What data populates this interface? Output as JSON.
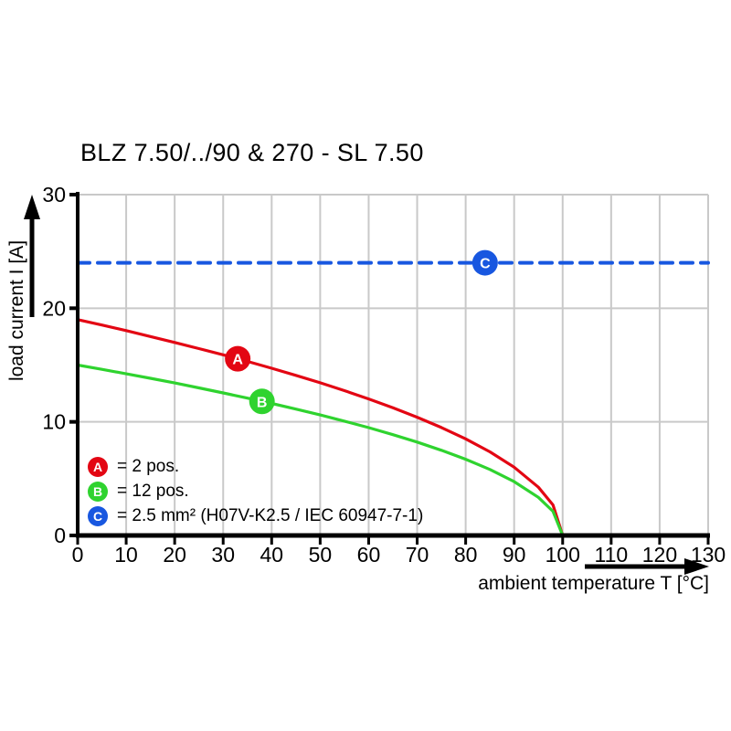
{
  "title": "BLZ 7.50/../90 & 270 - SL 7.50",
  "chart_data": {
    "type": "line",
    "title": "BLZ 7.50/../90 & 270 - SL 7.50",
    "xlabel": "ambient temperature T [°C]",
    "ylabel": "load current I [A]",
    "xlim": [
      0,
      130
    ],
    "ylim": [
      0,
      30
    ],
    "xticks": [
      0,
      10,
      20,
      30,
      40,
      50,
      60,
      70,
      80,
      90,
      100,
      110,
      120,
      130
    ],
    "yticks": [
      0,
      10,
      20,
      30
    ],
    "grid": true,
    "grid_color": "#c9c9c9",
    "axis_color": "#000000",
    "legend_position": "lower-left-inside",
    "series": [
      {
        "name": "A",
        "legend_label": "= 2 pos.",
        "color": "#e30613",
        "style": "solid",
        "marker": {
          "x": 33,
          "y": 15.55
        },
        "points": [
          [
            0,
            19.0
          ],
          [
            5,
            18.52
          ],
          [
            10,
            18.03
          ],
          [
            15,
            17.51
          ],
          [
            20,
            16.99
          ],
          [
            25,
            16.45
          ],
          [
            30,
            15.9
          ],
          [
            35,
            15.32
          ],
          [
            40,
            14.72
          ],
          [
            45,
            14.09
          ],
          [
            50,
            13.44
          ],
          [
            55,
            12.75
          ],
          [
            60,
            12.02
          ],
          [
            65,
            11.24
          ],
          [
            70,
            10.41
          ],
          [
            75,
            9.5
          ],
          [
            80,
            8.5
          ],
          [
            85,
            7.36
          ],
          [
            90,
            6.01
          ],
          [
            95,
            4.25
          ],
          [
            98,
            2.69
          ],
          [
            100,
            0
          ]
        ]
      },
      {
        "name": "B",
        "legend_label": "= 12 pos.",
        "color": "#2fd32f",
        "style": "solid",
        "marker": {
          "x": 38,
          "y": 11.8
        },
        "points": [
          [
            0,
            15.0
          ],
          [
            5,
            14.62
          ],
          [
            10,
            14.23
          ],
          [
            15,
            13.83
          ],
          [
            20,
            13.42
          ],
          [
            25,
            12.99
          ],
          [
            30,
            12.55
          ],
          [
            35,
            12.09
          ],
          [
            40,
            11.62
          ],
          [
            45,
            11.12
          ],
          [
            50,
            10.61
          ],
          [
            55,
            10.06
          ],
          [
            60,
            9.49
          ],
          [
            65,
            8.87
          ],
          [
            70,
            8.22
          ],
          [
            75,
            7.5
          ],
          [
            80,
            6.71
          ],
          [
            85,
            5.81
          ],
          [
            90,
            4.74
          ],
          [
            95,
            3.35
          ],
          [
            98,
            2.12
          ],
          [
            100,
            0
          ]
        ]
      },
      {
        "name": "C",
        "legend_label": "= 2.5 mm² (H07V-K2.5 / IEC 60947-7-1)",
        "color": "#1857e0",
        "style": "dashed",
        "marker": {
          "x": 84,
          "y": 24
        },
        "points": [
          [
            0,
            24
          ],
          [
            130,
            24
          ]
        ]
      }
    ]
  }
}
